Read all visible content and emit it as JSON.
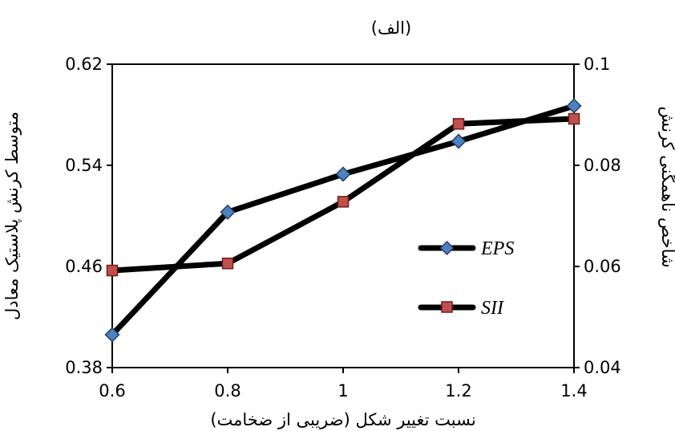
{
  "chart_data": {
    "type": "line",
    "title": "(الف)",
    "xlabel": "نسبت تغییر شکل (ضریبی از ضخامت)",
    "ylabel_left": "متوسط کرنش پلاستیک معادل",
    "ylabel_right": "شاخص ناهمگنی کرنش",
    "x": [
      0.6,
      0.8,
      1.0,
      1.2,
      1.4
    ],
    "x_tick_labels": [
      "0.6",
      "0.8",
      "1",
      "1.2",
      "1.4"
    ],
    "xlim": [
      0.6,
      1.4
    ],
    "ylim_left": [
      0.38,
      0.62
    ],
    "y_left_ticks": [
      0.38,
      0.46,
      0.54,
      0.62
    ],
    "y_left_tick_labels": [
      "0.38",
      "0.46",
      "0.54",
      "0.62"
    ],
    "ylim_right": [
      0.04,
      0.1
    ],
    "y_right_ticks": [
      0.04,
      0.06,
      0.08,
      0.1
    ],
    "y_right_tick_labels": [
      "0.04",
      "0.06",
      "0.08",
      "0.1"
    ],
    "grid": false,
    "legend_position": "right",
    "series": [
      {
        "name": "EPS",
        "axis": "left",
        "marker": "diamond",
        "marker_color": "#4F81BD",
        "line_color": "#000000",
        "values": [
          0.406,
          0.503,
          0.533,
          0.559,
          0.587
        ]
      },
      {
        "name": "SII",
        "axis": "right",
        "marker": "square",
        "marker_color": "#C0504D",
        "line_color": "#000000",
        "values": [
          0.0592,
          0.0606,
          0.0728,
          0.0882,
          0.0892
        ]
      }
    ]
  }
}
